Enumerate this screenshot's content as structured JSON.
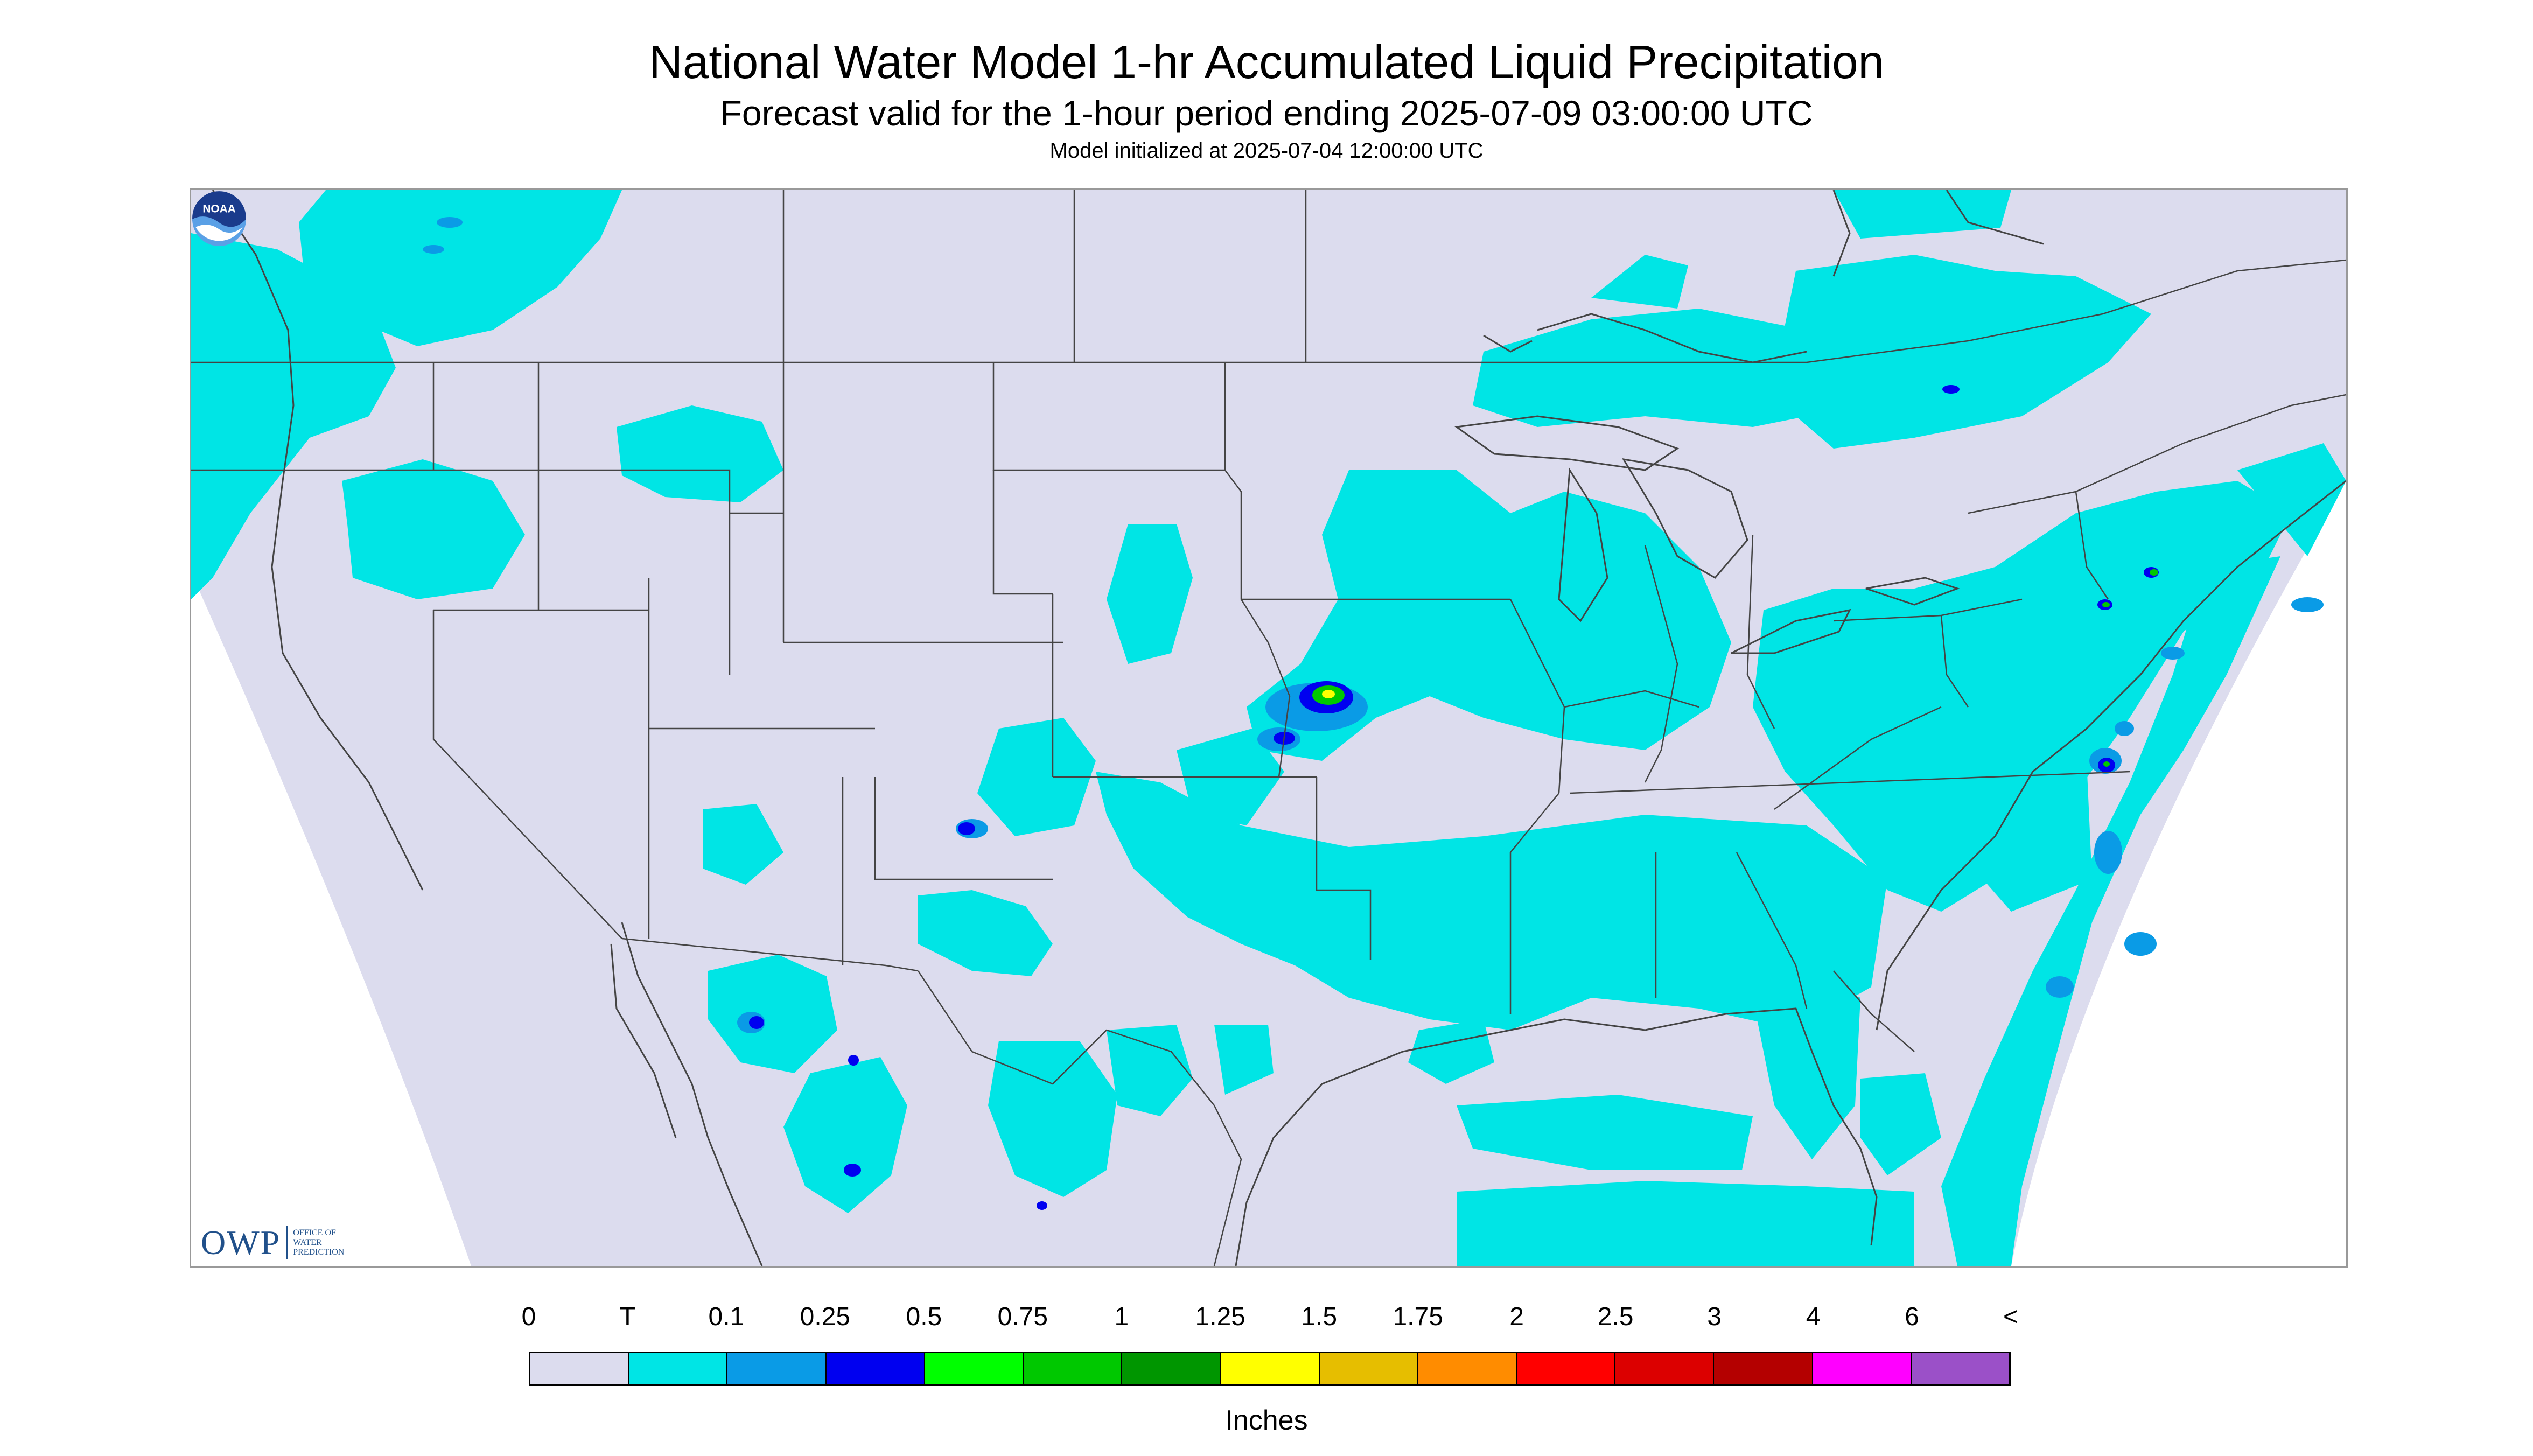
{
  "header": {
    "title": "National Water Model 1-hr Accumulated Liquid Precipitation",
    "subtitle": "Forecast valid for the 1-hour period ending 2025-07-09 03:00:00 UTC",
    "init": "Model initialized at 2025-07-04 12:00:00 UTC"
  },
  "logos": {
    "owp_letters": "OWP",
    "owp_line1": "OFFICE OF",
    "owp_line2": "WATER",
    "owp_line3": "PREDICTION",
    "noaa": "NOAA"
  },
  "legend": {
    "labels": [
      "0",
      "T",
      "0.1",
      "0.25",
      "0.5",
      "0.75",
      "1",
      "1.25",
      "1.5",
      "1.75",
      "2",
      "2.5",
      "3",
      "4",
      "6",
      "<"
    ],
    "colors": [
      "#dcdcee",
      "#00e5e5",
      "#0a9be6",
      "#0000f0",
      "#00ff00",
      "#00c800",
      "#009600",
      "#ffff00",
      "#e6be00",
      "#ff8c00",
      "#ff0000",
      "#dc0000",
      "#b40000",
      "#ff00ff",
      "#9b50c8"
    ],
    "units": "Inches"
  },
  "map_colors": {
    "background": "#dcdcee",
    "outside": "#ffffff",
    "trace": "#00e5e5",
    "light": "#0a9be6",
    "moderate": "#0000f0",
    "heavy": "#00c800",
    "peak": "#ffff00",
    "boundaries": "#444444"
  }
}
